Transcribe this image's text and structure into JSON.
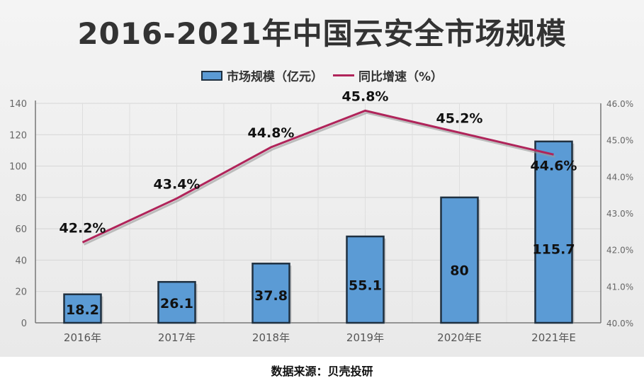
{
  "title": "2016-2021年中国云安全市场规模",
  "source": "数据来源：贝壳投研",
  "chart_data": {
    "type": "bar",
    "title": "2016-2021年中国云安全市场规模",
    "categories": [
      "2016年",
      "2017年",
      "2018年",
      "2019年",
      "2020年E",
      "2021年E"
    ],
    "series": [
      {
        "name": "市场规模（亿元）",
        "type": "bar",
        "axis": "left",
        "values": [
          18.2,
          26.1,
          37.8,
          55.1,
          80,
          115.7
        ],
        "labels": [
          "18.2",
          "26.1",
          "37.8",
          "55.1",
          "80",
          "115.7"
        ],
        "color": "#5b9bd5"
      },
      {
        "name": "同比增速（%）",
        "type": "line",
        "axis": "right",
        "values": [
          42.2,
          43.4,
          44.8,
          45.8,
          45.2,
          44.6
        ],
        "labels": [
          "42.2%",
          "43.4%",
          "44.8%",
          "45.8%",
          "45.2%",
          "44.6%"
        ],
        "color": "#b0245a"
      }
    ],
    "y_left": {
      "range": [
        0,
        140
      ],
      "ticks": [
        0,
        20,
        40,
        60,
        80,
        100,
        120,
        140
      ],
      "tick_labels": [
        "0",
        "20",
        "40",
        "60",
        "80",
        "100",
        "120",
        "140"
      ]
    },
    "y_right": {
      "range": [
        40.0,
        46.0
      ],
      "ticks": [
        40,
        41,
        42,
        43,
        44,
        45,
        46
      ],
      "tick_labels": [
        "40.0%",
        "41.0%",
        "42.0%",
        "43.0%",
        "44.0%",
        "45.0%",
        "46.0%"
      ]
    },
    "grid": true,
    "legend_position": "top-center"
  }
}
